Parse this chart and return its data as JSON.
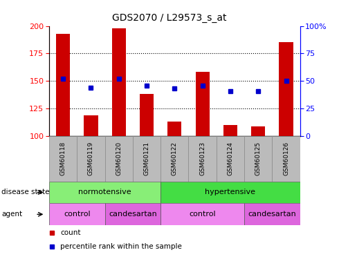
{
  "title": "GDS2070 / L29573_s_at",
  "samples": [
    "GSM60118",
    "GSM60119",
    "GSM60120",
    "GSM60121",
    "GSM60122",
    "GSM60123",
    "GSM60124",
    "GSM60125",
    "GSM60126"
  ],
  "counts": [
    193,
    119,
    198,
    138,
    113,
    158,
    110,
    109,
    185
  ],
  "percentile_ranks": [
    52,
    44,
    52,
    46,
    43,
    46,
    41,
    41,
    50
  ],
  "ymin": 100,
  "ymax": 200,
  "y_left_ticks": [
    100,
    125,
    150,
    175,
    200
  ],
  "y_right_ticks": [
    0,
    25,
    50,
    75,
    100
  ],
  "bar_color": "#cc0000",
  "dot_color": "#0000cc",
  "bar_width": 0.5,
  "disease_state_labels": [
    {
      "label": "normotensive",
      "start": 0,
      "end": 4,
      "color": "#88ee77"
    },
    {
      "label": "hypertensive",
      "start": 4,
      "end": 9,
      "color": "#44dd44"
    }
  ],
  "agent_labels": [
    {
      "label": "control",
      "start": 0,
      "end": 2,
      "color": "#ee88ee"
    },
    {
      "label": "candesartan",
      "start": 2,
      "end": 4,
      "color": "#dd66dd"
    },
    {
      "label": "control",
      "start": 4,
      "end": 7,
      "color": "#ee88ee"
    },
    {
      "label": "candesartan",
      "start": 7,
      "end": 9,
      "color": "#dd66dd"
    }
  ],
  "tick_bg_color": "#bbbbbb",
  "legend_count_color": "#cc0000",
  "legend_dot_color": "#0000cc",
  "fig_width": 4.9,
  "fig_height": 3.75,
  "dpi": 100
}
